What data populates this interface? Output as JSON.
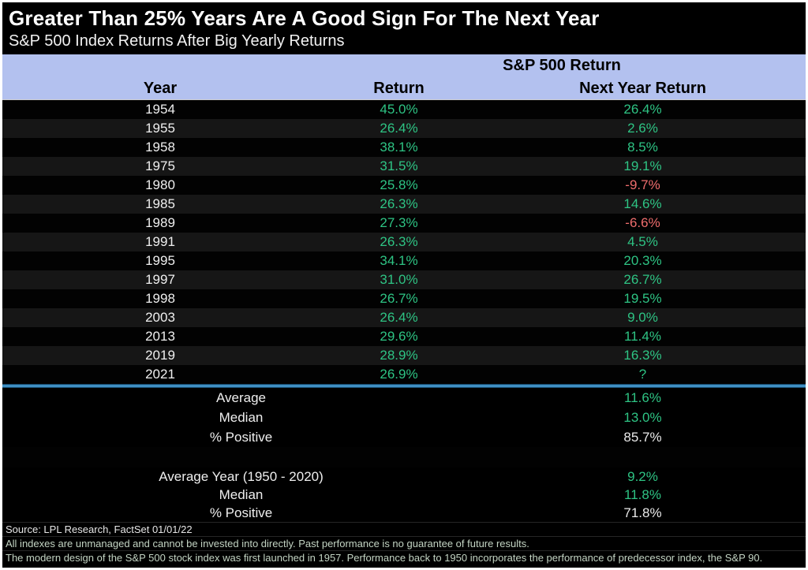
{
  "title": "Greater Than 25% Years Are A Good Sign For The Next Year",
  "subtitle": "S&P 500 Index Returns After Big Yearly Returns",
  "header": {
    "group_label": "S&P 500 Return",
    "col_year": "Year",
    "col_return": "Return",
    "col_next": "Next Year Return"
  },
  "chart_data": {
    "type": "table",
    "title": "Greater Than 25% Years Are A Good Sign For The Next Year",
    "subtitle": "S&P 500 Index Returns After Big Yearly Returns",
    "columns": [
      "Year",
      "Return",
      "Next Year Return"
    ],
    "rows": [
      {
        "year": "1954",
        "return": "45.0%",
        "next": "26.4%",
        "next_color": "green"
      },
      {
        "year": "1955",
        "return": "26.4%",
        "next": "2.6%",
        "next_color": "green"
      },
      {
        "year": "1958",
        "return": "38.1%",
        "next": "8.5%",
        "next_color": "green"
      },
      {
        "year": "1975",
        "return": "31.5%",
        "next": "19.1%",
        "next_color": "green"
      },
      {
        "year": "1980",
        "return": "25.8%",
        "next": "-9.7%",
        "next_color": "red"
      },
      {
        "year": "1985",
        "return": "26.3%",
        "next": "14.6%",
        "next_color": "green"
      },
      {
        "year": "1989",
        "return": "27.3%",
        "next": "-6.6%",
        "next_color": "red"
      },
      {
        "year": "1991",
        "return": "26.3%",
        "next": "4.5%",
        "next_color": "green"
      },
      {
        "year": "1995",
        "return": "34.1%",
        "next": "20.3%",
        "next_color": "green"
      },
      {
        "year": "1997",
        "return": "31.0%",
        "next": "26.7%",
        "next_color": "green"
      },
      {
        "year": "1998",
        "return": "26.7%",
        "next": "19.5%",
        "next_color": "green"
      },
      {
        "year": "2003",
        "return": "26.4%",
        "next": "9.0%",
        "next_color": "green"
      },
      {
        "year": "2013",
        "return": "29.6%",
        "next": "11.4%",
        "next_color": "green"
      },
      {
        "year": "2019",
        "return": "28.9%",
        "next": "16.3%",
        "next_color": "green"
      },
      {
        "year": "2021",
        "return": "26.9%",
        "next": "?",
        "next_color": "green"
      }
    ],
    "summary_group1": [
      {
        "label": "Average",
        "value": "11.6%",
        "color": "green"
      },
      {
        "label": "Median",
        "value": "13.0%",
        "color": "green"
      },
      {
        "label": "% Positive",
        "value": "85.7%",
        "color": "white"
      }
    ],
    "summary_group2": [
      {
        "label": "Average Year (1950 - 2020)",
        "value": "9.2%",
        "color": "green"
      },
      {
        "label": "Median",
        "value": "11.8%",
        "color": "green"
      },
      {
        "label": "% Positive",
        "value": "71.8%",
        "color": "white"
      }
    ]
  },
  "footer": {
    "source": "Source: LPL Research, FactSet 01/01/22",
    "disclaimer1": "All indexes are unmanaged and cannot be invested into directly. Past performance is no guarantee of future results.",
    "disclaimer2": "The modern design of the S&P 500 stock index was first launched in 1957. Performance back to 1950 incorporates the performance of predecessor index, the S&P 90."
  },
  "colors": {
    "positive_green": "#2ec484",
    "negative_red": "#ee6d6d",
    "header_band": "#b3c1ef",
    "divider_blue": "#4aa0d8",
    "background": "#000000"
  }
}
